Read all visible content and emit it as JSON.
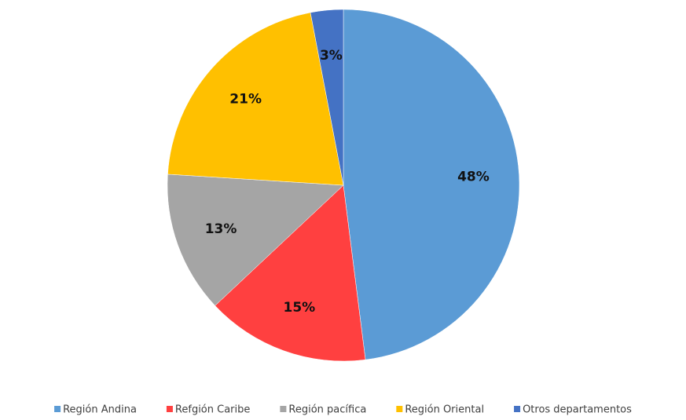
{
  "chart_data": {
    "type": "pie",
    "categories": [
      "Región Andina",
      "Refgión Caribe",
      "Región pacífica",
      "Región Oriental",
      "Otros departamentos"
    ],
    "values": [
      48,
      15,
      13,
      21,
      3
    ],
    "value_labels": [
      "48%",
      "15%",
      "13%",
      "21%",
      "3%"
    ],
    "colors": [
      "#5b9bd5",
      "#ff4040",
      "#a5a5a5",
      "#ffc000",
      "#4472c4"
    ],
    "legend": "bottom"
  }
}
